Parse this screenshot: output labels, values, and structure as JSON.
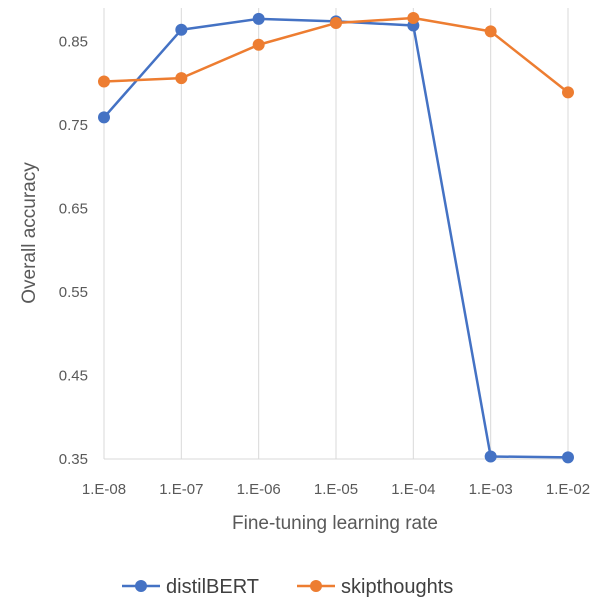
{
  "chart_data": {
    "type": "line",
    "title": "",
    "xlabel": "Fine-tuning learning rate",
    "ylabel": "Overall accuracy",
    "categories": [
      "1.E-08",
      "1.E-07",
      "1.E-06",
      "1.E-05",
      "1.E-04",
      "1.E-03",
      "1.E-02"
    ],
    "yticks": [
      "0.35",
      "0.45",
      "0.55",
      "0.65",
      "0.75",
      "0.85"
    ],
    "ylim": [
      0.35,
      0.89
    ],
    "grid": "vertical",
    "legend_position": "bottom",
    "series": [
      {
        "name": "distilBERT",
        "color": "#4472C4",
        "values": [
          0.759,
          0.864,
          0.877,
          0.874,
          0.869,
          0.353,
          0.352
        ]
      },
      {
        "name": "skipthoughts",
        "color": "#ED7D31",
        "values": [
          0.802,
          0.806,
          0.846,
          0.872,
          0.878,
          0.862,
          0.789
        ]
      }
    ]
  }
}
